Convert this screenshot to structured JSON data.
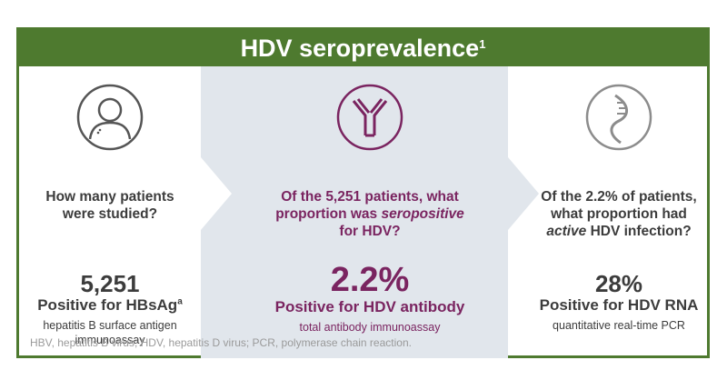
{
  "title": "HDV seroprevalence",
  "title_ref": "1",
  "columns": [
    {
      "icon": "person-icon",
      "question": [
        "How many patients",
        "were studied?"
      ],
      "value": "5,251",
      "label": "Positive for HBsAg",
      "label_sup": "a",
      "desc": [
        "hepatitis B surface antigen",
        "immunoassay"
      ]
    },
    {
      "icon": "antibody-icon",
      "question": [
        "Of the 5,251 patients, what",
        "proportion was ",
        "seropositive",
        "for HDV?"
      ],
      "value": "2.2%",
      "label": "Positive for HDV antibody",
      "desc": [
        "total antibody immunoassay"
      ]
    },
    {
      "icon": "rna-strand-icon",
      "question": [
        "Of the 2.2% of patients,",
        "what proportion had",
        "active",
        " HDV infection?"
      ],
      "value": "28%",
      "label": "Positive for HDV RNA",
      "desc": [
        "quantitative real-time PCR"
      ]
    }
  ],
  "footnote": "HBV, hepatitis B virus; HDV, hepatitis D virus; PCR, polymerase chain reaction.",
  "colors": {
    "green": "#4e7a2f",
    "purple": "#7a2460",
    "mid_panel": "#e1e6ec",
    "text": "#3c3c3c"
  }
}
